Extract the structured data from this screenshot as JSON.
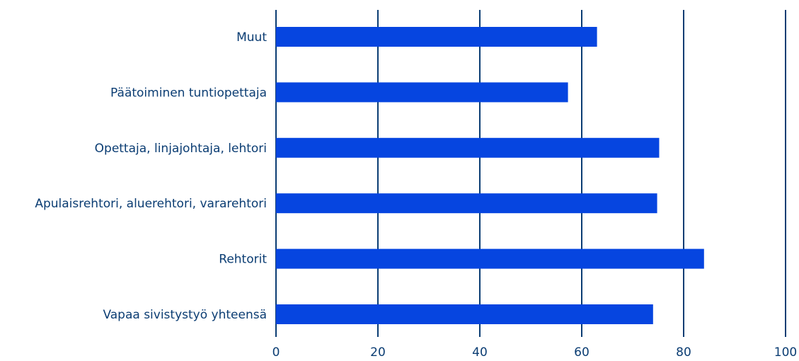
{
  "chart_data": {
    "type": "bar",
    "orientation": "horizontal",
    "categories": [
      "Muut",
      "Päätoiminen tuntiopettaja",
      "Opettaja, linjajohtaja, lehtori",
      "Apulaisrehtori, aluerehtori, vararehtori",
      "Rehtorit",
      "Vapaa sivistystyö yhteensä"
    ],
    "values": [
      63,
      57.3,
      75.2,
      74.8,
      84,
      74
    ],
    "x_ticks": [
      "0",
      "20",
      "40",
      "60",
      "80",
      "100"
    ],
    "xlim": [
      0,
      100
    ],
    "grid": "vertical",
    "colors": {
      "bar": "#0645e0",
      "axis": "#0b3d73"
    }
  }
}
